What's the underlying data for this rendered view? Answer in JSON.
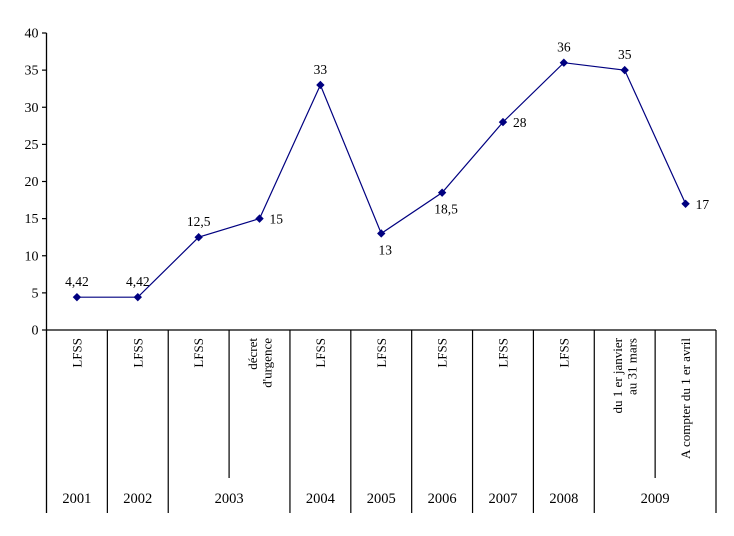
{
  "chart_data": {
    "type": "line",
    "title": "",
    "xlabel": "",
    "ylabel": "",
    "line_color": "#000080",
    "axis_color": "#000000",
    "marker": "diamond",
    "grid": false,
    "legend": "none",
    "ylim": [
      0,
      40
    ],
    "ytick_labels": [
      "0",
      "5",
      "10",
      "15",
      "20",
      "25",
      "30",
      "35",
      "40"
    ],
    "values": [
      4.42,
      4.42,
      12.5,
      15,
      33,
      13,
      18.5,
      28,
      36,
      35,
      17
    ],
    "value_labels": [
      "4,42",
      "4,42",
      "12,5",
      "15",
      "33",
      "13",
      "18,5",
      "28",
      "36",
      "35",
      "17"
    ],
    "value_label_positions": [
      "above",
      "above",
      "above",
      "right",
      "above",
      "below",
      "below",
      "right",
      "above",
      "above",
      "right"
    ],
    "x_axis": {
      "cells": [
        {
          "lines": [
            "LFSS"
          ],
          "year": "2001"
        },
        {
          "lines": [
            "LFSS"
          ],
          "year": "2002"
        },
        {
          "lines": [
            "LFSS"
          ],
          "year": "2003"
        },
        {
          "lines": [
            "décret",
            "d'urgence"
          ],
          "year": "2003"
        },
        {
          "lines": [
            "LFSS"
          ],
          "year": "2004"
        },
        {
          "lines": [
            "LFSS"
          ],
          "year": "2005"
        },
        {
          "lines": [
            "LFSS"
          ],
          "year": "2006"
        },
        {
          "lines": [
            "LFSS"
          ],
          "year": "2007"
        },
        {
          "lines": [
            "LFSS"
          ],
          "year": "2008"
        },
        {
          "lines": [
            "du 1 er janvier",
            "au 31 mars"
          ],
          "year": "2009"
        },
        {
          "lines": [
            "A compter du 1 er avril"
          ],
          "year": "2009"
        }
      ],
      "years": [
        "2001",
        "2002",
        "2003",
        "2004",
        "2005",
        "2006",
        "2007",
        "2008",
        "2009"
      ]
    }
  }
}
